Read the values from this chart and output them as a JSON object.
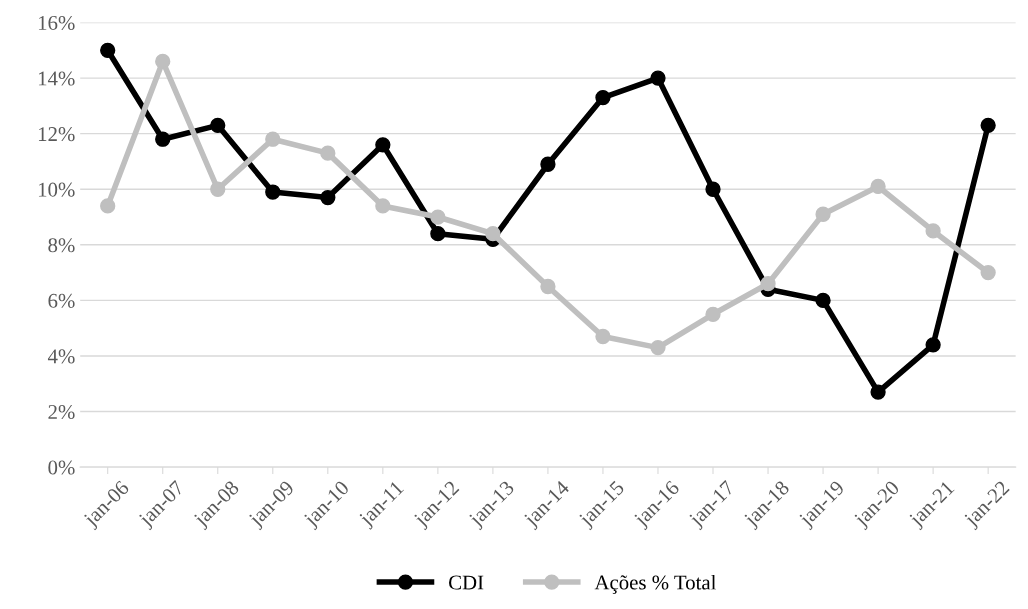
{
  "chart_data": {
    "type": "line",
    "categories": [
      "jan-06",
      "jan-07",
      "jan-08",
      "jan-09",
      "jan-10",
      "jan-11",
      "jan-12",
      "jan-13",
      "jan-14",
      "jan-15",
      "jan-16",
      "jan-17",
      "jan-18",
      "jan-19",
      "jan-20",
      "jan-21",
      "jan-22"
    ],
    "series": [
      {
        "name": "CDI",
        "color": "#000000",
        "values": [
          15.0,
          11.8,
          12.3,
          9.9,
          9.7,
          11.6,
          8.4,
          8.2,
          10.9,
          13.3,
          14.0,
          10.0,
          6.4,
          6.0,
          2.7,
          4.4,
          12.3
        ]
      },
      {
        "name": "Ações % Total",
        "color": "#bfbfbf",
        "values": [
          9.4,
          14.6,
          10.0,
          11.8,
          11.3,
          9.4,
          9.0,
          8.4,
          6.5,
          4.7,
          4.3,
          5.5,
          6.6,
          9.1,
          10.1,
          8.5,
          7.0
        ]
      }
    ],
    "ylim": [
      0,
      16
    ],
    "yticks": [
      {
        "value": 0,
        "label": "0%"
      },
      {
        "value": 2,
        "label": "2%"
      },
      {
        "value": 4,
        "label": "4%"
      },
      {
        "value": 6,
        "label": "6%"
      },
      {
        "value": 8,
        "label": "8%"
      },
      {
        "value": 10,
        "label": "10%"
      },
      {
        "value": 12,
        "label": "12%"
      },
      {
        "value": 14,
        "label": "14%"
      },
      {
        "value": 16,
        "label": "16%"
      }
    ],
    "grid": "y",
    "legend": "bottom",
    "marker": "circle",
    "line_style": "solid"
  }
}
